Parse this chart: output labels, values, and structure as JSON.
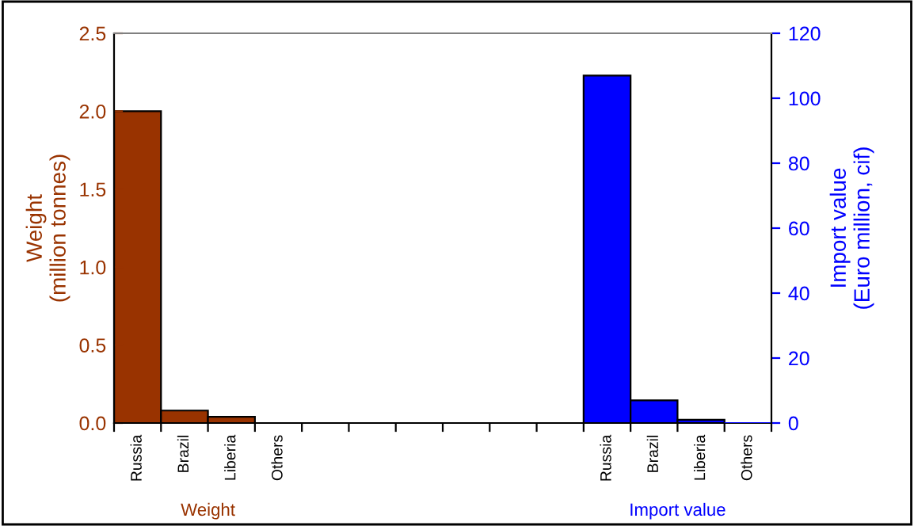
{
  "chart_data": {
    "type": "bar",
    "categories": [
      "Russia",
      "Brazil",
      "Liberia",
      "Others",
      null,
      null,
      null,
      null,
      null,
      null,
      "Russia",
      "Brazil",
      "Liberia",
      "Others"
    ],
    "series": [
      {
        "color": "#993300",
        "values": [
          2.0,
          0.08,
          0.04,
          0,
          null,
          null,
          null,
          null,
          null,
          null,
          null,
          null,
          null,
          null
        ]
      },
      {
        "color": "#0000ff",
        "axis": "y2",
        "values": [
          null,
          null,
          null,
          null,
          null,
          null,
          null,
          null,
          null,
          null,
          107,
          7,
          1,
          0
        ]
      }
    ],
    "ylabel": "Weight\n(million tonnes)",
    "y2label": "Import value\n(Euro million, cif)",
    "ylim": [
      0,
      2.5
    ],
    "yticks": [
      {
        "value": 0,
        "label": "0.0"
      },
      0.5,
      {
        "value": 1.0,
        "label": "1.0"
      },
      1.5,
      {
        "value": 2.0,
        "label": "2.0"
      },
      2.5
    ],
    "y2lim": [
      0,
      120
    ],
    "y2ticks": [
      0,
      20,
      40,
      60,
      80,
      100,
      120
    ],
    "annotations": [
      "Weight",
      "Import value"
    ],
    "grid": false,
    "legend": false
  }
}
